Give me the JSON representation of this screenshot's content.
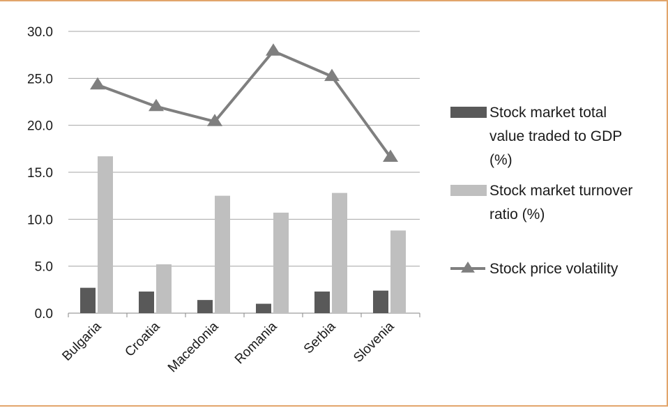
{
  "chart_data": {
    "type": "bar",
    "categories": [
      "Bulgaria",
      "Croatia",
      "Macedonia",
      "Romania",
      "Serbia",
      "Slovenia"
    ],
    "series": [
      {
        "name": "Stock market total value traded to GDP (%)",
        "kind": "bar",
        "values": [
          2.7,
          2.3,
          1.4,
          1.0,
          2.3,
          2.4
        ],
        "color": "#595959"
      },
      {
        "name": "Stock market turnover ratio (%)",
        "kind": "bar",
        "values": [
          16.7,
          5.2,
          12.5,
          10.7,
          12.8,
          8.8
        ],
        "color": "#BFBFBF"
      },
      {
        "name": "Stock price volatility",
        "kind": "line",
        "marker": "triangle",
        "values": [
          24.3,
          22.0,
          20.4,
          27.9,
          25.2,
          16.6
        ],
        "color": "#7F7F7F"
      }
    ],
    "ylim": [
      0,
      30
    ],
    "yticks": [
      "0.0",
      "5.0",
      "10.0",
      "15.0",
      "20.0",
      "25.0",
      "30.0"
    ],
    "grid": true,
    "legend_position": "right",
    "legend": [
      {
        "lines": [
          "Stock market total",
          "value traded to GDP",
          "(%)"
        ]
      },
      {
        "lines": [
          "Stock market turnover",
          "ratio (%)"
        ]
      },
      {
        "lines": [
          "Stock price volatility"
        ]
      }
    ]
  }
}
